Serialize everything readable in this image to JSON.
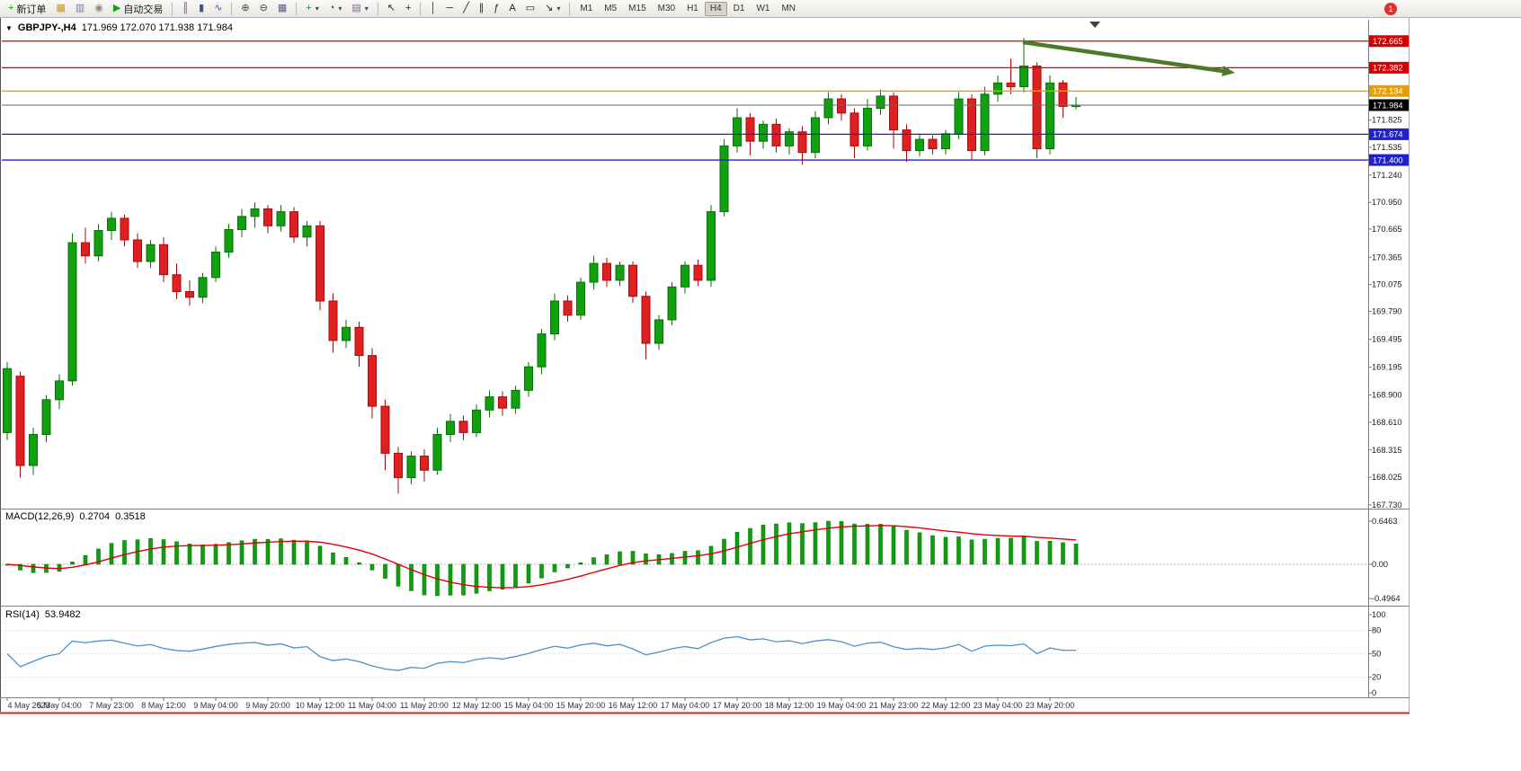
{
  "toolbar": {
    "items": [
      {
        "name": "new-order-button",
        "glyph": "+",
        "color": "#0f9d0f",
        "label": "新订单"
      },
      {
        "name": "market-watch-button",
        "glyph": "▦",
        "color": "#c79618"
      },
      {
        "name": "data-window-button",
        "glyph": "▥",
        "color": "#6b7fb0"
      },
      {
        "name": "navigator-button",
        "glyph": "◉",
        "color": "#8a8a8a"
      },
      {
        "name": "autotrading-button",
        "glyph": "▶",
        "color": "#14a014",
        "label": "自动交易"
      },
      {
        "sep": true
      },
      {
        "name": "bar-chart-button",
        "glyph": "║",
        "color": "#3a5a8c"
      },
      {
        "name": "candlestick-chart-button",
        "glyph": "▮",
        "color": "#3a5a8c"
      },
      {
        "name": "line-chart-button",
        "glyph": "∿",
        "color": "#3a5a8c"
      },
      {
        "sep": true
      },
      {
        "name": "zoom-in-button",
        "glyph": "⊕",
        "color": "#404040"
      },
      {
        "name": "zoom-out-button",
        "glyph": "⊖",
        "color": "#404040"
      },
      {
        "name": "tile-windows-button",
        "glyph": "▦",
        "color": "#50607a"
      },
      {
        "sep": true
      },
      {
        "name": "indicators-button",
        "glyph": "+",
        "color": "#0f9d0f",
        "dropdown": true
      },
      {
        "name": "periods-button",
        "glyph": "◔",
        "color": "#404040",
        "dropdown": true
      },
      {
        "name": "templates-button",
        "glyph": "▤",
        "color": "#7a6a90",
        "dropdown": true
      },
      {
        "sep": true
      },
      {
        "name": "cursor-button",
        "glyph": "↖",
        "color": "#222222"
      },
      {
        "name": "crosshair-button",
        "glyph": "+",
        "color": "#222222"
      },
      {
        "sep": true
      },
      {
        "name": "vertical-line-button",
        "glyph": "│",
        "color": "#222222"
      },
      {
        "name": "horizontal-line-button",
        "glyph": "─",
        "color": "#222222"
      },
      {
        "name": "trendline-button",
        "glyph": "╱",
        "color": "#222222"
      },
      {
        "name": "equidistant-channel-button",
        "glyph": "∥",
        "color": "#222222"
      },
      {
        "name": "fibonacci-button",
        "glyph": "ƒ",
        "color": "#222222"
      },
      {
        "name": "text-button",
        "glyph": "A",
        "color": "#222222"
      },
      {
        "name": "text-label-button",
        "glyph": "▭",
        "color": "#222222"
      },
      {
        "name": "arrows-button",
        "glyph": "↘",
        "color": "#222222",
        "dropdown": true
      },
      {
        "sep": true
      }
    ],
    "timeframes": [
      "M1",
      "M5",
      "M15",
      "M30",
      "H1",
      "H4",
      "D1",
      "W1",
      "MN"
    ],
    "active_timeframe": "H4",
    "notification": "1"
  },
  "chart": {
    "title": "GBPJPY-,H4",
    "ohlc": "171.969 172.070 171.938 171.984"
  },
  "macd": {
    "label": "MACD(12,26,9)",
    "value_main": "0.2704",
    "value_signal": "0.3518",
    "ticks": [
      "0.6463",
      "0.00",
      "-0.4964"
    ]
  },
  "rsi": {
    "label": "RSI(14)",
    "value": "53.9482",
    "ticks": [
      "100",
      "80",
      "50",
      "20",
      "0"
    ]
  },
  "chart_data": {
    "type": "candlestick",
    "symbol": "GBPJPY-",
    "timeframe": "H4",
    "current_bar": {
      "open": 171.969,
      "high": 172.07,
      "low": 171.938,
      "close": 171.984
    },
    "price_axis_range": [
      167.73,
      172.72
    ],
    "candles": [
      [
        168.5,
        169.25,
        168.42,
        169.18
      ],
      [
        169.1,
        169.15,
        168.02,
        168.15
      ],
      [
        168.15,
        168.55,
        168.05,
        168.48
      ],
      [
        168.48,
        168.9,
        168.4,
        168.85
      ],
      [
        168.85,
        169.12,
        168.75,
        169.05
      ],
      [
        169.05,
        170.62,
        169.0,
        170.52
      ],
      [
        170.52,
        170.68,
        170.3,
        170.38
      ],
      [
        170.38,
        170.72,
        170.32,
        170.65
      ],
      [
        170.65,
        170.85,
        170.55,
        170.78
      ],
      [
        170.78,
        170.82,
        170.48,
        170.55
      ],
      [
        170.55,
        170.62,
        170.25,
        170.32
      ],
      [
        170.32,
        170.55,
        170.25,
        170.5
      ],
      [
        170.5,
        170.58,
        170.1,
        170.18
      ],
      [
        170.18,
        170.3,
        169.92,
        170.0
      ],
      [
        170.0,
        170.12,
        169.85,
        169.94
      ],
      [
        169.94,
        170.2,
        169.88,
        170.15
      ],
      [
        170.15,
        170.48,
        170.1,
        170.42
      ],
      [
        170.42,
        170.72,
        170.36,
        170.66
      ],
      [
        170.66,
        170.88,
        170.58,
        170.8
      ],
      [
        170.8,
        170.95,
        170.68,
        170.88
      ],
      [
        170.88,
        170.92,
        170.62,
        170.7
      ],
      [
        170.7,
        170.92,
        170.64,
        170.85
      ],
      [
        170.85,
        170.9,
        170.52,
        170.58
      ],
      [
        170.58,
        170.75,
        170.48,
        170.7
      ],
      [
        170.7,
        170.75,
        169.8,
        169.9
      ],
      [
        169.9,
        169.98,
        169.35,
        169.48
      ],
      [
        169.48,
        169.7,
        169.4,
        169.62
      ],
      [
        169.62,
        169.68,
        169.2,
        169.32
      ],
      [
        169.32,
        169.4,
        168.65,
        168.78
      ],
      [
        168.78,
        168.85,
        168.1,
        168.28
      ],
      [
        168.28,
        168.35,
        167.85,
        168.02
      ],
      [
        168.02,
        168.3,
        167.95,
        168.25
      ],
      [
        168.25,
        168.32,
        167.98,
        168.1
      ],
      [
        168.1,
        168.55,
        168.05,
        168.48
      ],
      [
        168.48,
        168.7,
        168.4,
        168.62
      ],
      [
        168.62,
        168.68,
        168.42,
        168.5
      ],
      [
        168.5,
        168.8,
        168.45,
        168.74
      ],
      [
        168.74,
        168.95,
        168.66,
        168.88
      ],
      [
        168.88,
        168.94,
        168.68,
        168.76
      ],
      [
        168.76,
        169.0,
        168.7,
        168.95
      ],
      [
        168.95,
        169.25,
        168.88,
        169.2
      ],
      [
        169.2,
        169.6,
        169.12,
        169.55
      ],
      [
        169.55,
        169.98,
        169.48,
        169.9
      ],
      [
        169.9,
        169.96,
        169.68,
        169.75
      ],
      [
        169.75,
        170.15,
        169.7,
        170.1
      ],
      [
        170.1,
        170.38,
        170.02,
        170.3
      ],
      [
        170.3,
        170.36,
        170.05,
        170.12
      ],
      [
        170.12,
        170.32,
        170.06,
        170.28
      ],
      [
        170.28,
        170.32,
        169.88,
        169.95
      ],
      [
        169.95,
        170.0,
        169.28,
        169.45
      ],
      [
        169.45,
        169.75,
        169.38,
        169.7
      ],
      [
        169.7,
        170.1,
        169.64,
        170.05
      ],
      [
        170.05,
        170.32,
        169.98,
        170.28
      ],
      [
        170.28,
        170.34,
        170.06,
        170.12
      ],
      [
        170.12,
        170.92,
        170.05,
        170.85
      ],
      [
        170.85,
        171.62,
        170.8,
        171.55
      ],
      [
        171.55,
        171.95,
        171.48,
        171.85
      ],
      [
        171.85,
        171.9,
        171.45,
        171.6
      ],
      [
        171.6,
        171.82,
        171.52,
        171.78
      ],
      [
        171.78,
        171.84,
        171.48,
        171.55
      ],
      [
        171.55,
        171.74,
        171.46,
        171.7
      ],
      [
        171.7,
        171.76,
        171.35,
        171.48
      ],
      [
        171.48,
        171.92,
        171.42,
        171.85
      ],
      [
        171.85,
        172.12,
        171.78,
        172.05
      ],
      [
        172.05,
        172.1,
        171.82,
        171.9
      ],
      [
        171.9,
        171.95,
        171.42,
        171.55
      ],
      [
        171.55,
        172.05,
        171.5,
        171.95
      ],
      [
        171.95,
        172.15,
        171.88,
        172.08
      ],
      [
        172.08,
        172.12,
        171.52,
        171.72
      ],
      [
        171.72,
        171.78,
        171.38,
        171.5
      ],
      [
        171.5,
        171.68,
        171.44,
        171.62
      ],
      [
        171.62,
        171.66,
        171.46,
        171.52
      ],
      [
        171.52,
        171.72,
        171.46,
        171.68
      ],
      [
        171.68,
        172.12,
        171.62,
        172.05
      ],
      [
        172.05,
        172.1,
        171.4,
        171.5
      ],
      [
        171.5,
        172.18,
        171.45,
        172.1
      ],
      [
        172.1,
        172.3,
        172.02,
        172.22
      ],
      [
        172.22,
        172.48,
        172.1,
        172.18
      ],
      [
        172.18,
        172.7,
        172.12,
        172.4
      ],
      [
        172.4,
        172.44,
        171.42,
        171.52
      ],
      [
        171.52,
        172.3,
        171.46,
        172.22
      ],
      [
        172.22,
        172.25,
        171.85,
        171.97
      ],
      [
        171.969,
        172.07,
        171.938,
        171.984
      ]
    ],
    "hlines": [
      {
        "label": "172.665",
        "price": 172.665,
        "color": "#d60000"
      },
      {
        "label": "172.382",
        "price": 172.382,
        "color": "#d60000"
      },
      {
        "label": "172.134",
        "price": 172.134,
        "color": "#e8a000"
      },
      {
        "label": "171.674",
        "price": 171.674,
        "color": "#2020cc"
      },
      {
        "label": "171.400",
        "price": 171.4,
        "color": "#2020cc"
      }
    ],
    "bid_line": {
      "label": "171.984",
      "price": 171.984,
      "color": "#000000"
    },
    "plain_price_ticks": [
      "171.825",
      "171.535",
      "171.240",
      "170.950",
      "170.665",
      "170.365",
      "170.075",
      "169.790",
      "169.495",
      "169.195",
      "168.900",
      "168.610",
      "168.315",
      "168.025",
      "167.730"
    ],
    "time_labels": [
      "4 May 2023",
      "5 May 04:00",
      "7 May 23:00",
      "8 May 12:00",
      "9 May 04:00",
      "9 May 20:00",
      "10 May 12:00",
      "11 May 04:00",
      "11 May 20:00",
      "12 May 12:00",
      "15 May 04:00",
      "15 May 20:00",
      "16 May 12:00",
      "17 May 04:00",
      "17 May 20:00",
      "18 May 12:00",
      "19 May 04:00",
      "21 May 23:00",
      "22 May 12:00",
      "23 May 04:00",
      "23 May 20:00"
    ],
    "annotations": [
      {
        "type": "arrow",
        "color": "#4c7a28",
        "from_price": 172.65,
        "to_price": 172.33,
        "note": "down-sloping trend arrow top right"
      }
    ],
    "indicators": [
      {
        "name": "MACD",
        "params": [
          12,
          26,
          9
        ],
        "current_main": 0.2704,
        "current_signal": 0.3518,
        "scale": [
          -0.4964,
          0.6463
        ],
        "histogram_color": "#0ea00e",
        "signal_color": "#e00000"
      },
      {
        "name": "RSI",
        "params": [
          14
        ],
        "current": 53.9482,
        "scale": [
          0,
          100
        ],
        "levels": [
          20,
          50,
          80
        ],
        "line_color": "#4e8fd0"
      }
    ],
    "colors": {
      "up": "#10a010",
      "down": "#df2020",
      "background": "#ffffff"
    }
  }
}
